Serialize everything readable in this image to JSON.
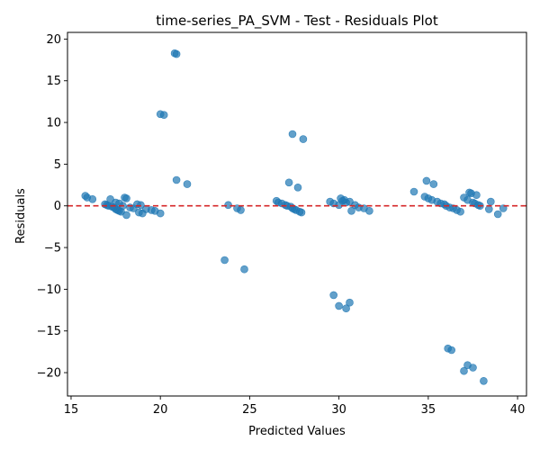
{
  "chart_data": {
    "type": "scatter",
    "title": "time-series_PA_SVM - Test - Residuals Plot",
    "xlabel": "Predicted Values",
    "ylabel": "Residuals",
    "xlim": [
      14.8,
      40.5
    ],
    "ylim": [
      -22.8,
      20.8
    ],
    "xticks": [
      15,
      20,
      25,
      30,
      35,
      40
    ],
    "yticks": [
      -20,
      -15,
      -10,
      -5,
      0,
      5,
      10,
      15,
      20
    ],
    "reference_line": {
      "y": 0,
      "color": "#d62728",
      "style": "dashed"
    },
    "point_color": "#1f77b4",
    "points": [
      [
        15.8,
        1.2
      ],
      [
        15.9,
        1.0
      ],
      [
        16.2,
        0.8
      ],
      [
        16.9,
        0.2
      ],
      [
        17.0,
        0.1
      ],
      [
        17.1,
        0.0
      ],
      [
        17.2,
        0.8
      ],
      [
        17.3,
        -0.1
      ],
      [
        17.4,
        -0.2
      ],
      [
        17.5,
        -0.4
      ],
      [
        17.6,
        -0.5
      ],
      [
        17.7,
        -0.6
      ],
      [
        17.5,
        0.4
      ],
      [
        17.7,
        0.3
      ],
      [
        17.8,
        -0.7
      ],
      [
        17.9,
        0.0
      ],
      [
        18.0,
        1.0
      ],
      [
        18.1,
        0.9
      ],
      [
        18.1,
        -1.1
      ],
      [
        18.3,
        -0.2
      ],
      [
        18.5,
        -0.3
      ],
      [
        18.7,
        0.2
      ],
      [
        18.8,
        -0.8
      ],
      [
        18.9,
        0.1
      ],
      [
        19.0,
        -0.9
      ],
      [
        19.2,
        -0.4
      ],
      [
        19.5,
        -0.5
      ],
      [
        19.7,
        -0.6
      ],
      [
        20.0,
        -0.9
      ],
      [
        20.0,
        11.0
      ],
      [
        20.2,
        10.9
      ],
      [
        20.8,
        18.3
      ],
      [
        20.9,
        18.2
      ],
      [
        20.9,
        3.1
      ],
      [
        21.5,
        2.6
      ],
      [
        23.6,
        -6.5
      ],
      [
        23.8,
        0.1
      ],
      [
        24.3,
        -0.3
      ],
      [
        24.5,
        -0.5
      ],
      [
        24.7,
        -7.6
      ],
      [
        26.5,
        0.6
      ],
      [
        26.6,
        0.4
      ],
      [
        26.8,
        0.3
      ],
      [
        27.0,
        0.1
      ],
      [
        27.1,
        0.0
      ],
      [
        27.2,
        2.8
      ],
      [
        27.3,
        -0.1
      ],
      [
        27.4,
        -0.3
      ],
      [
        27.5,
        -0.4
      ],
      [
        27.6,
        -0.5
      ],
      [
        27.7,
        2.2
      ],
      [
        27.8,
        -0.7
      ],
      [
        27.9,
        -0.8
      ],
      [
        27.4,
        8.6
      ],
      [
        28.0,
        8.0
      ],
      [
        29.5,
        0.5
      ],
      [
        29.7,
        0.3
      ],
      [
        30.0,
        0.1
      ],
      [
        30.1,
        0.9
      ],
      [
        30.2,
        0.6
      ],
      [
        30.3,
        0.7
      ],
      [
        30.4,
        0.4
      ],
      [
        30.6,
        0.5
      ],
      [
        30.7,
        -0.6
      ],
      [
        30.9,
        0.1
      ],
      [
        31.1,
        -0.2
      ],
      [
        31.4,
        -0.3
      ],
      [
        31.7,
        -0.6
      ],
      [
        29.7,
        -10.7
      ],
      [
        30.0,
        -12.0
      ],
      [
        30.4,
        -12.3
      ],
      [
        30.6,
        -11.6
      ],
      [
        34.2,
        1.7
      ],
      [
        34.8,
        1.1
      ],
      [
        34.9,
        3.0
      ],
      [
        35.0,
        0.9
      ],
      [
        35.2,
        0.7
      ],
      [
        35.3,
        2.6
      ],
      [
        35.5,
        0.5
      ],
      [
        35.7,
        0.3
      ],
      [
        35.9,
        0.2
      ],
      [
        36.0,
        0.0
      ],
      [
        36.2,
        -0.2
      ],
      [
        36.4,
        -0.3
      ],
      [
        36.6,
        -0.5
      ],
      [
        36.8,
        -0.7
      ],
      [
        37.0,
        1.0
      ],
      [
        37.2,
        0.7
      ],
      [
        37.3,
        1.6
      ],
      [
        37.4,
        1.5
      ],
      [
        37.5,
        0.4
      ],
      [
        37.6,
        0.3
      ],
      [
        37.8,
        0.1
      ],
      [
        37.9,
        0.0
      ],
      [
        37.7,
        1.3
      ],
      [
        38.4,
        -0.4
      ],
      [
        38.5,
        0.5
      ],
      [
        38.9,
        -1.0
      ],
      [
        39.2,
        -0.3
      ],
      [
        36.1,
        -17.1
      ],
      [
        36.3,
        -17.3
      ],
      [
        37.0,
        -19.8
      ],
      [
        37.2,
        -19.1
      ],
      [
        37.5,
        -19.4
      ],
      [
        38.1,
        -21.0
      ]
    ]
  }
}
